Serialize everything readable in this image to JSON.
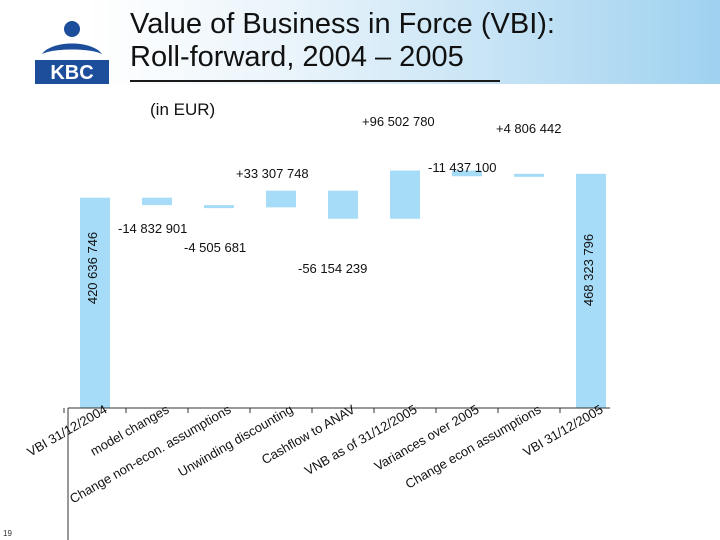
{
  "header": {
    "title_line1": "Value of Business in Force (VBI):",
    "title_line2": "Roll-forward, 2004 – 2005",
    "logo_text": "KBC",
    "unit_label": "(in EUR)"
  },
  "footer": {
    "page_number": "19"
  },
  "colors": {
    "bar": "#a6dcf8",
    "header_gradient_end": "#9fd2f0",
    "logo_blue": "#1d4e9c"
  },
  "chart_data": {
    "type": "bar",
    "subtype": "waterfall",
    "title": "",
    "xlabel": "",
    "ylabel": "",
    "ylim": [
      0,
      520000000
    ],
    "grid": false,
    "legend": "none",
    "categories": [
      "VBI 31/12/2004",
      "model changes",
      "Change non-econ. assumptions",
      "Unwinding discounting",
      "Cashflow to ANAV",
      "VNB as of 31/12/2005",
      "Variances over 2005",
      "Change econ assumptions",
      "VBI 31/12/2005"
    ],
    "values": [
      420636746,
      -14832901,
      -4505681,
      33307748,
      -56154239,
      96502780,
      -11437100,
      4806442,
      468323796
    ],
    "measure": [
      "total",
      "relative",
      "relative",
      "relative",
      "relative",
      "relative",
      "relative",
      "relative",
      "total"
    ],
    "data_labels": [
      "420 636 746",
      "-14 832 901",
      "-4 505 681",
      "+33 307 748",
      "-56 154 239",
      "+96 502 780",
      "-11 437 100",
      "+4 806 442",
      "468 323 796"
    ]
  }
}
